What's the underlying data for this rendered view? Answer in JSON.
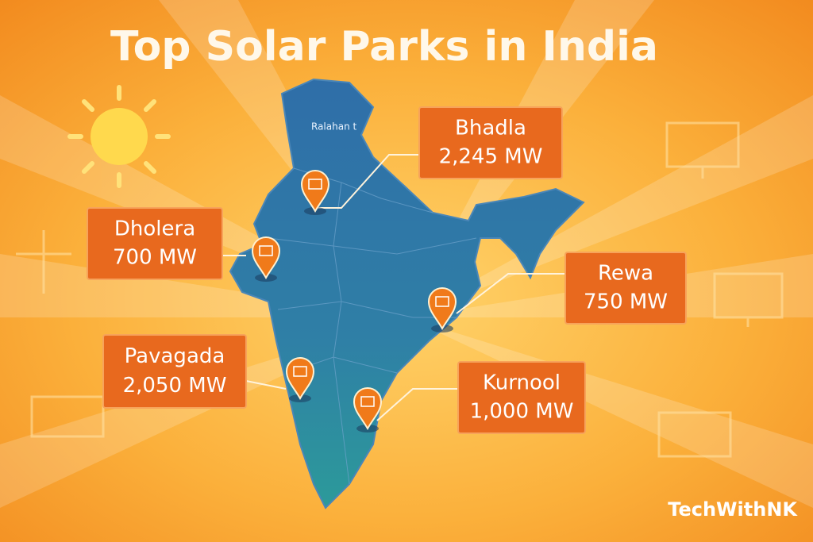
{
  "header": {
    "title": "Top Solar Parks in India"
  },
  "map": {
    "label": "Ralahan t"
  },
  "parks": [
    {
      "name": "Bhadla",
      "capacity": "2,245 MW"
    },
    {
      "name": "Dholera",
      "capacity": "700 MW"
    },
    {
      "name": "Rewa",
      "capacity": "750 MW"
    },
    {
      "name": "Pavagada",
      "capacity": "2,050 MW"
    },
    {
      "name": "Kurnool",
      "capacity": "1,000 MW"
    }
  ],
  "footer": {
    "brand": "TechWithNK"
  }
}
